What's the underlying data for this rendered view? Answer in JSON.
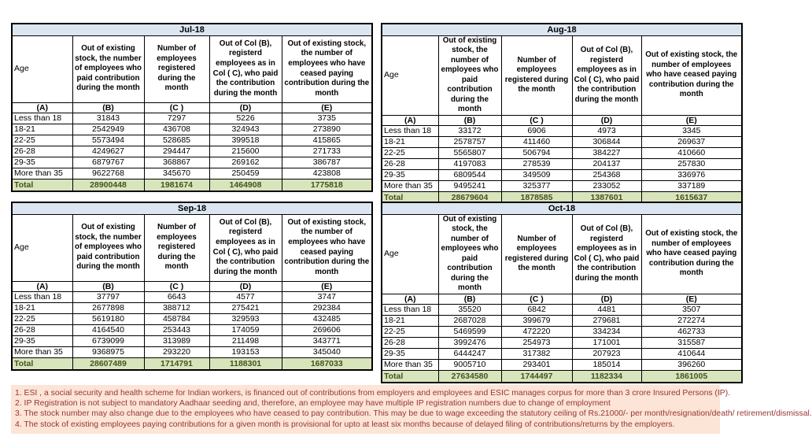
{
  "column_headers": {
    "age": "Age",
    "b": "Out of existing stock, the number of employees who paid contribution during the month",
    "c": "Number of employees registered during the month",
    "d": "Out of Col (B), registerd employees as in Col ( C), who paid the contribution during the month",
    "e": "Out of existing stock, the number of  employees who have ceased paying contribution during the month",
    "letters": [
      "(A)",
      "(B)",
      "(C )",
      "(D)",
      "(E)"
    ]
  },
  "age_bands": [
    "Less than 18",
    "18-21",
    "22-25",
    "26-28",
    "29-35",
    "More than 35"
  ],
  "total_label": "Total",
  "tables": [
    {
      "title": "Jul-18",
      "rows": [
        [
          31843,
          7297,
          5226,
          3735
        ],
        [
          2542949,
          436708,
          324943,
          273890
        ],
        [
          5573494,
          528685,
          399518,
          415865
        ],
        [
          4249627,
          294447,
          215600,
          271733
        ],
        [
          6879767,
          368867,
          269162,
          386787
        ],
        [
          9622768,
          345670,
          250459,
          423808
        ]
      ],
      "total": [
        28900448,
        1981674,
        1464908,
        1775818
      ]
    },
    {
      "title": "Aug-18",
      "rows": [
        [
          33172,
          6906,
          4973,
          3345
        ],
        [
          2578757,
          411460,
          306844,
          269637
        ],
        [
          5565807,
          506794,
          384227,
          410660
        ],
        [
          4197083,
          278539,
          204137,
          257830
        ],
        [
          6809544,
          349509,
          254368,
          336976
        ],
        [
          9495241,
          325377,
          233052,
          337189
        ]
      ],
      "total": [
        28679604,
        1878585,
        1387601,
        1615637
      ]
    },
    {
      "title": "Sep-18",
      "rows": [
        [
          37797,
          6643,
          4577,
          3747
        ],
        [
          2677898,
          388712,
          275421,
          292384
        ],
        [
          5619180,
          458784,
          329593,
          432485
        ],
        [
          4164540,
          253443,
          174059,
          269606
        ],
        [
          6739099,
          313989,
          211498,
          343771
        ],
        [
          9368975,
          293220,
          193153,
          345040
        ]
      ],
      "total": [
        28607489,
        1714791,
        1188301,
        1687033
      ]
    },
    {
      "title": "Oct-18",
      "rows": [
        [
          35520,
          6842,
          4481,
          3507
        ],
        [
          2687028,
          399679,
          279681,
          272274
        ],
        [
          5469599,
          472220,
          334234,
          462733
        ],
        [
          3992476,
          254973,
          171001,
          315587
        ],
        [
          6444247,
          317382,
          207923,
          410644
        ],
        [
          9005710,
          293401,
          185014,
          396260
        ]
      ],
      "total": [
        27634580,
        1744497,
        1182334,
        1861005
      ]
    }
  ],
  "footnotes": [
    "1. ESI , a social security and health scheme for Indian workers, is financed out of contributions from employers and employees and ESIC manages corpus for more than 3 crore Insured Persons (IP).",
    "2. IP Registration is not subject to mandatory Aadhaar seeding and, therefore, an employee may have multiple IP registration numbers due to change of employment",
    "3. The stock number may also change due to the employees who have ceased to pay contribution. This may  be due to wage exceeding the statutory ceiling of  Rs.21000/- per month/resignation/death/ retirement/dismissal.",
    "4. The stock of existing employees paying contributions for a given month is provisional for upto at least six months because of delayed filing of contributions/returns by the employers."
  ],
  "colors": {
    "title_bg": "#dce6f1",
    "title_text": "#17375d",
    "total_bg": "#d8e4bc",
    "total_text": "#46531f",
    "note_bg": "#fce4d6",
    "note_text": "#963634",
    "border": "#000000"
  }
}
